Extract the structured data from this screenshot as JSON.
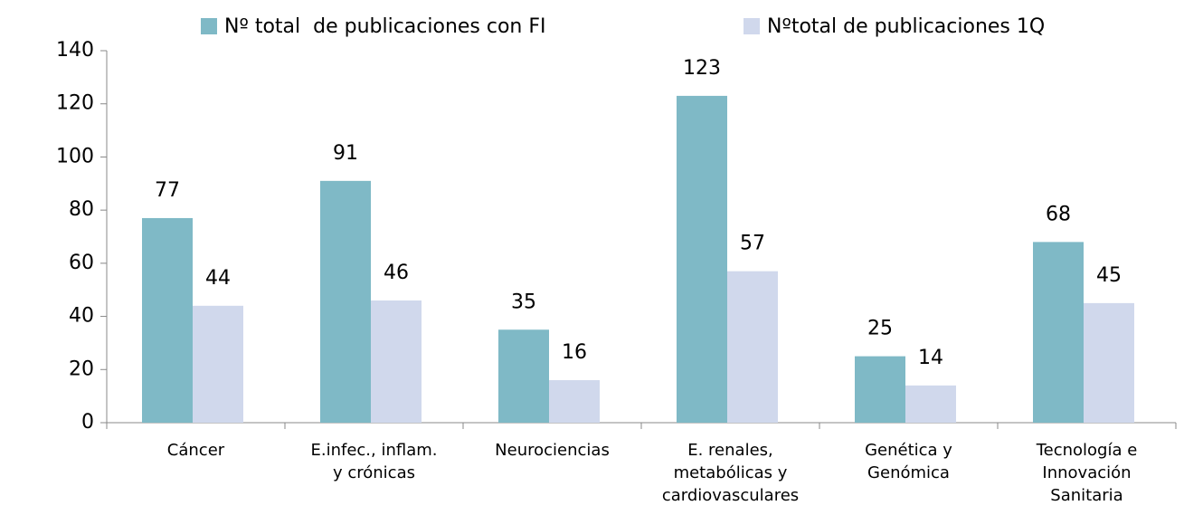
{
  "chart_data": {
    "type": "bar",
    "categories": [
      "Cáncer",
      "E.infec., inflam.\ny crónicas",
      "Neurociencias",
      "E. renales,\nmetabólicas y\ncardiovasculares",
      "Genética y\nGenómica",
      "Tecnología e\nInnovación\nSanitaria"
    ],
    "series": [
      {
        "name": "Nº total  de publicaciones con FI",
        "color": "#7fb9c6",
        "values": [
          77,
          91,
          35,
          123,
          25,
          68
        ]
      },
      {
        "name": "Nºtotal de publicaciones 1Q",
        "color": "#d0d8ec",
        "values": [
          44,
          46,
          16,
          57,
          14,
          45
        ]
      }
    ],
    "ylim": [
      0,
      140
    ],
    "yticks": [
      0,
      20,
      40,
      60,
      80,
      100,
      120,
      140
    ],
    "legend": "top"
  }
}
